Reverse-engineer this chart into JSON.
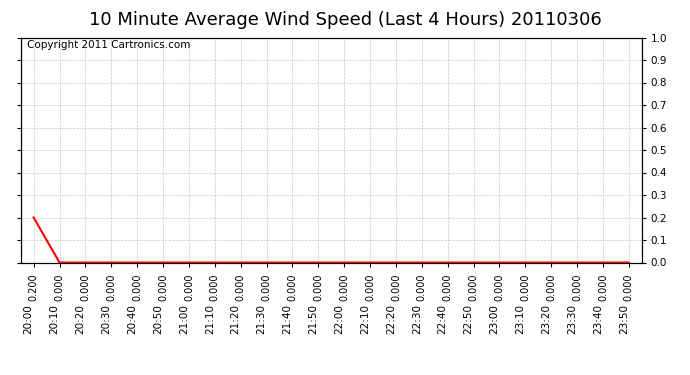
{
  "title": "10 Minute Average Wind Speed (Last 4 Hours) 20110306",
  "copyright_text": "Copyright 2011 Cartronics.com",
  "line_color": "#ff0000",
  "background_color": "#ffffff",
  "plot_bg_color": "#ffffff",
  "grid_color": "#c8c8c8",
  "ylim": [
    0.0,
    1.0
  ],
  "yticks_right": [
    0.0,
    0.1,
    0.2,
    0.3,
    0.4,
    0.5,
    0.6,
    0.7,
    0.8,
    0.9,
    1.0
  ],
  "x_labels": [
    "20:00",
    "20:10",
    "20:20",
    "20:30",
    "20:40",
    "20:50",
    "21:00",
    "21:10",
    "21:20",
    "21:30",
    "21:40",
    "21:50",
    "22:00",
    "22:10",
    "22:20",
    "22:30",
    "22:40",
    "22:50",
    "23:00",
    "23:10",
    "23:20",
    "23:30",
    "23:40",
    "23:50"
  ],
  "y_values": [
    0.2,
    0.0,
    0.0,
    0.0,
    0.0,
    0.0,
    0.0,
    0.0,
    0.0,
    0.0,
    0.0,
    0.0,
    0.0,
    0.0,
    0.0,
    0.0,
    0.0,
    0.0,
    0.0,
    0.0,
    0.0,
    0.0,
    0.0,
    0.0
  ],
  "title_fontsize": 13,
  "label_fontsize": 7.5,
  "value_label_fontsize": 7,
  "copyright_fontsize": 7.5
}
